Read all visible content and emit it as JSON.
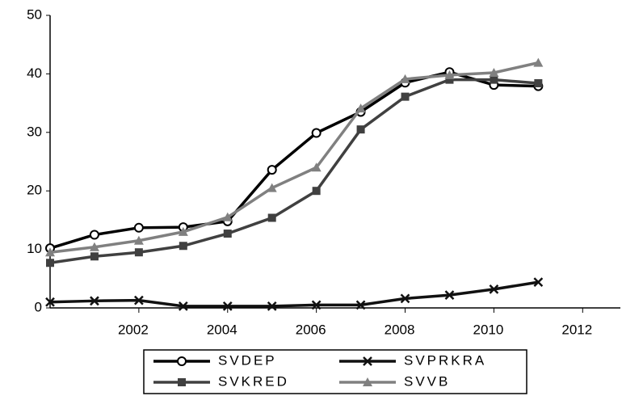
{
  "chart_data": {
    "type": "line",
    "x": [
      2000,
      2001,
      2002,
      2003,
      2004,
      2005,
      2006,
      2007,
      2008,
      2009,
      2010,
      2011
    ],
    "series": [
      {
        "name": "SVDEP",
        "color": "#000000",
        "marker": "circle",
        "values": [
          10.2,
          12.5,
          13.7,
          13.8,
          14.8,
          23.6,
          29.9,
          33.5,
          38.5,
          40.3,
          38.1,
          37.9
        ]
      },
      {
        "name": "SVPRKRA",
        "color": "#111111",
        "marker": "x",
        "values": [
          1.0,
          1.2,
          1.3,
          0.3,
          0.3,
          0.3,
          0.5,
          0.5,
          1.6,
          2.2,
          3.2,
          4.4
        ]
      },
      {
        "name": "SVKRED",
        "color": "#404040",
        "marker": "square",
        "values": [
          7.7,
          8.8,
          9.5,
          10.6,
          12.7,
          15.4,
          20.0,
          30.5,
          36.1,
          39.0,
          39.0,
          38.4
        ]
      },
      {
        "name": "SVVB",
        "color": "#808080",
        "marker": "triangle",
        "values": [
          9.5,
          10.4,
          11.5,
          13.0,
          15.5,
          20.5,
          24.0,
          34.1,
          39.1,
          39.8,
          40.2,
          41.9
        ]
      }
    ],
    "xlim": [
      2000,
      2012.85
    ],
    "xticks": [
      2002,
      2004,
      2006,
      2008,
      2010,
      2012
    ],
    "ylim": [
      0,
      50
    ],
    "yticks": [
      0,
      10,
      20,
      30,
      40,
      50
    ],
    "grid": false,
    "legend": "bottom"
  }
}
